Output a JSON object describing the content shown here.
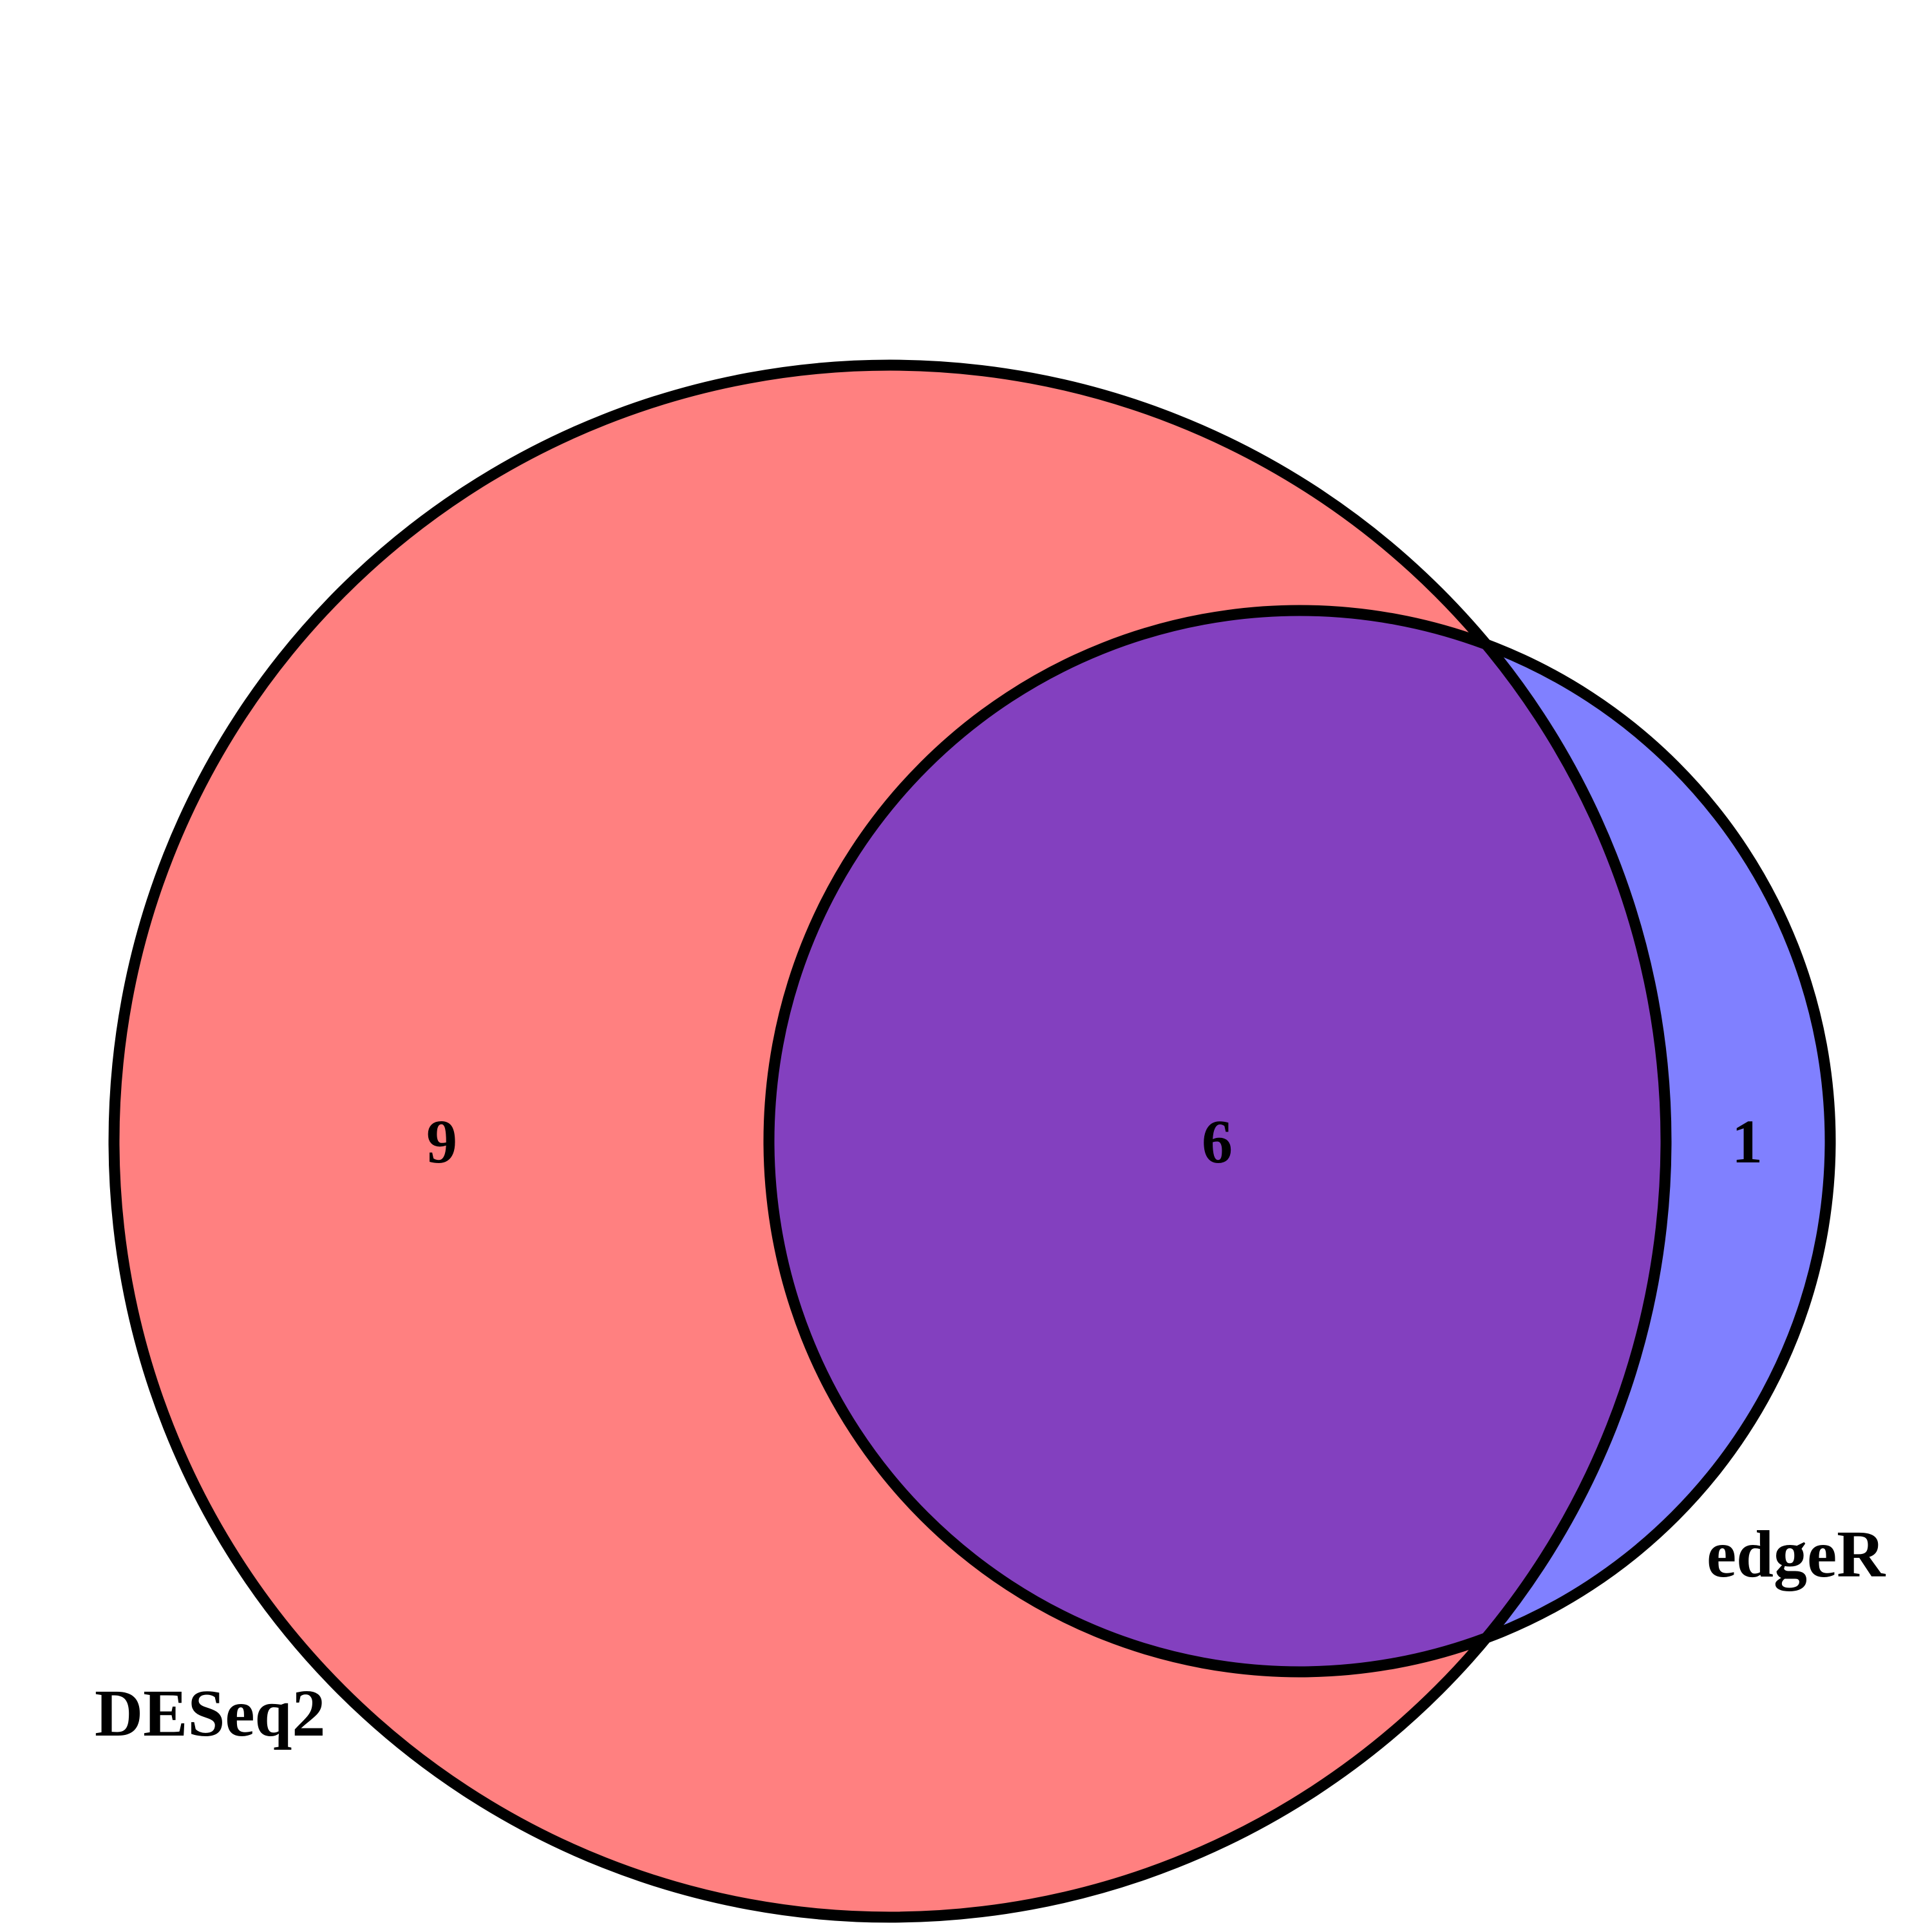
{
  "diagram": {
    "type": "venn",
    "sets": [
      {
        "id": "deseq2",
        "label": "DESeq2",
        "fill_color": "#ff8080",
        "outline_color": "#000000"
      },
      {
        "id": "edger",
        "label": "edgeR",
        "fill_color": "#8080ff",
        "outline_color": "#000000"
      }
    ],
    "overlap_fill_color": "#8340bf",
    "regions": [
      {
        "id": "deseq2_only",
        "sets": [
          "deseq2"
        ],
        "count": "9"
      },
      {
        "id": "both",
        "sets": [
          "deseq2",
          "edger"
        ],
        "count": "6"
      },
      {
        "id": "edger_only",
        "sets": [
          "edger"
        ],
        "count": "1"
      }
    ]
  }
}
